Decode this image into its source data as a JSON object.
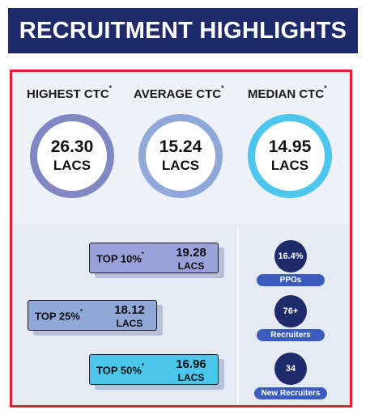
{
  "banner": {
    "title": "RECRUITMENT HIGHLIGHTS"
  },
  "ctc": [
    {
      "label": "HIGHEST CTC",
      "mark": "*",
      "value": "26.30",
      "unit": "LACS",
      "ring_color": "#7f88c2"
    },
    {
      "label": "AVERAGE CTC",
      "mark": "*",
      "value": "15.24",
      "unit": "LACS",
      "ring_color": "#8fa8d8"
    },
    {
      "label": "MEDIAN CTC",
      "mark": "*",
      "value": "14.95",
      "unit": "LACS",
      "ring_color": "#4cc6ec"
    }
  ],
  "tops": [
    {
      "label": "TOP 10%",
      "mark": "*",
      "value": "19.28",
      "unit": "LACS",
      "fill": "#9aa1da"
    },
    {
      "label": "TOP 25%",
      "mark": "*",
      "value": "18.12",
      "unit": "LACS",
      "fill": "#8fa8d8"
    },
    {
      "label": "TOP 50%",
      "mark": "*",
      "value": "16.96",
      "unit": "LACS",
      "fill": "#4cc6ec"
    }
  ],
  "stats": [
    {
      "value": "16.4%",
      "label": "PPOs"
    },
    {
      "value": "76+",
      "label": "Recruiters"
    },
    {
      "value": "34",
      "label": "New Recruiters"
    }
  ]
}
